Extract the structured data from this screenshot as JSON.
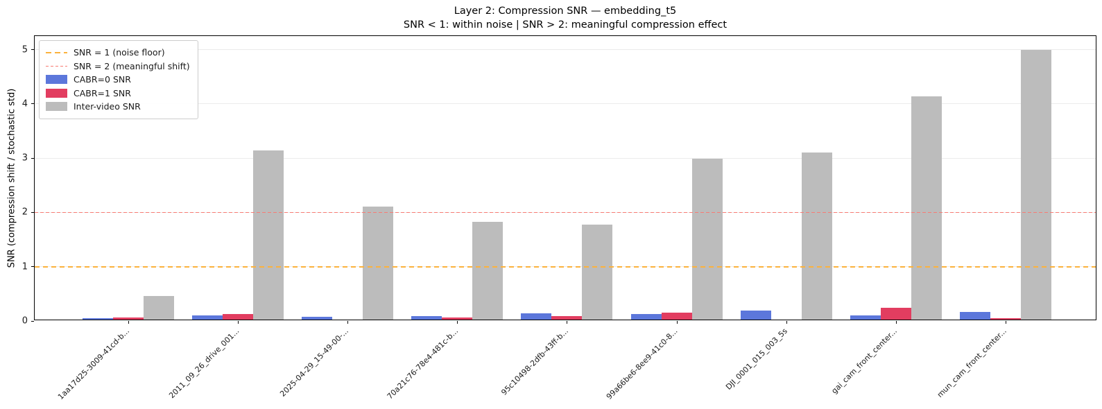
{
  "figure": {
    "title": "Layer 2: Compression SNR — embedding_t5",
    "subtitle": "SNR < 1: within noise  |  SNR > 2: meaningful compression effect",
    "ylabel": "SNR (compression shift / stochastic std)"
  },
  "legend": {
    "items": [
      {
        "label": "SNR = 1 (noise floor)",
        "type": "dashed-line",
        "color": "#FBB23C",
        "dash": "8 5",
        "thickness": 2.5
      },
      {
        "label": "SNR = 2 (meaningful shift)",
        "type": "dashed-line",
        "color": "#F87B73",
        "dash": "4 3",
        "thickness": 1.5
      },
      {
        "label": "CABR=0 SNR",
        "type": "patch",
        "color": "#5C77DB"
      },
      {
        "label": "CABR=1 SNR",
        "type": "patch",
        "color": "#E23D60"
      },
      {
        "label": "Inter-video SNR",
        "type": "patch",
        "color": "#BCBCBC"
      }
    ]
  },
  "chart_data": {
    "type": "bar",
    "title": "Layer 2: Compression SNR — embedding_t5",
    "subtitle": "SNR < 1: within noise  |  SNR > 2: meaningful compression effect",
    "xlabel": "",
    "ylabel": "SNR (compression shift / stochastic std)",
    "categories": [
      "1aa17d25-3009-41cd-b...",
      "2011_09_26_drive_001...",
      "2025-04-29_15-49-00-...",
      "70a21c76-78e4-481c-b...",
      "95c10498-2dfb-43ff-b...",
      "99a66be6-8ee9-41c0-8...",
      "DJI_0001_015_003_5s",
      "gai_cam_front_center...",
      "mun_cam_front_center..."
    ],
    "series": [
      {
        "name": "CABR=0 SNR",
        "color": "#5C77DB",
        "values": [
          0.02,
          0.08,
          0.05,
          0.07,
          0.12,
          0.1,
          0.17,
          0.08,
          0.14
        ]
      },
      {
        "name": "CABR=1 SNR",
        "color": "#E23D60",
        "values": [
          0.04,
          0.1,
          0.0,
          0.04,
          0.06,
          0.13,
          0.0,
          0.22,
          0.03
        ]
      },
      {
        "name": "Inter-video SNR",
        "color": "#BCBCBC",
        "values": [
          0.43,
          3.12,
          2.08,
          1.8,
          1.75,
          2.97,
          3.08,
          4.11,
          4.97
        ]
      }
    ],
    "hlines": [
      {
        "y": 1,
        "label": "SNR = 1 (noise floor)",
        "color": "#FBB23C",
        "dash": "7 5",
        "thickness": 2
      },
      {
        "y": 2,
        "label": "SNR = 2 (meaningful shift)",
        "color": "#F87B73",
        "dash": "5 3",
        "thickness": 1.5
      }
    ],
    "yticks": [
      0,
      1,
      2,
      3,
      4,
      5
    ],
    "ylim": [
      0,
      5.25
    ],
    "grid": true,
    "legend_position": "upper left"
  }
}
